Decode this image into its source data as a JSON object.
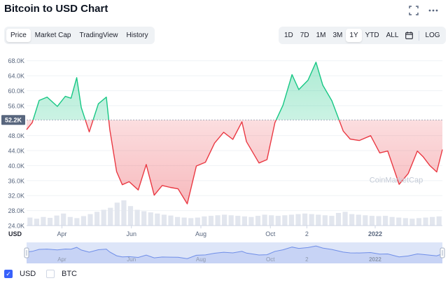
{
  "header": {
    "title": "Bitcoin to USD Chart",
    "tabs": [
      {
        "label": "Price",
        "active": true
      },
      {
        "label": "Market Cap",
        "active": false
      },
      {
        "label": "TradingView",
        "active": false
      },
      {
        "label": "History",
        "active": false
      }
    ],
    "ranges": [
      {
        "label": "1D",
        "active": false
      },
      {
        "label": "7D",
        "active": false
      },
      {
        "label": "1M",
        "active": false
      },
      {
        "label": "3M",
        "active": false
      },
      {
        "label": "1Y",
        "active": true
      },
      {
        "label": "YTD",
        "active": false
      },
      {
        "label": "ALL",
        "active": false
      }
    ],
    "log_label": "LOG",
    "icons": [
      "fullscreen-icon",
      "more-icon",
      "calendar-icon"
    ]
  },
  "chart_data": {
    "type": "line",
    "ylabel": "USD",
    "yticks": [
      "68.0K",
      "64.0K",
      "60.0K",
      "56.0K",
      "52.2K",
      "48.0K",
      "44.0K",
      "40.0K",
      "36.0K",
      "32.0K",
      "28.0K",
      "24.0K"
    ],
    "ylim": [
      24000,
      70000
    ],
    "current_price_label": "52.2K",
    "baseline": 52200,
    "xticks": [
      "Apr",
      "Jun",
      "Aug",
      "Oct",
      "2",
      "2022"
    ],
    "x_range": [
      "2021-03-01",
      "2022-03-01"
    ],
    "series": [
      {
        "x": [
          "2021-03-01",
          "2021-03-06",
          "2021-03-12",
          "2021-03-19",
          "2021-03-28",
          "2021-04-04",
          "2021-04-09",
          "2021-04-14",
          "2021-04-18",
          "2021-04-25",
          "2021-05-03",
          "2021-05-10",
          "2021-05-13",
          "2021-05-19",
          "2021-05-24",
          "2021-05-30",
          "2021-06-07",
          "2021-06-14",
          "2021-06-21",
          "2021-06-28",
          "2021-07-05",
          "2021-07-12",
          "2021-07-20",
          "2021-07-28",
          "2021-08-05",
          "2021-08-13",
          "2021-08-21",
          "2021-08-29",
          "2021-09-06",
          "2021-09-10",
          "2021-09-21",
          "2021-09-28",
          "2021-10-05",
          "2021-10-12",
          "2021-10-20",
          "2021-10-26",
          "2021-11-03",
          "2021-11-10",
          "2021-11-16",
          "2021-11-24",
          "2021-12-04",
          "2021-12-10",
          "2021-12-18",
          "2021-12-28",
          "2022-01-05",
          "2022-01-12",
          "2022-01-22",
          "2022-01-30",
          "2022-02-07",
          "2022-02-12",
          "2022-02-18",
          "2022-02-24",
          "2022-03-01"
        ],
        "values": [
          49600,
          51500,
          57400,
          58300,
          55800,
          58500,
          58000,
          63500,
          55500,
          49000,
          56500,
          58300,
          49700,
          38400,
          34900,
          35700,
          33500,
          40300,
          32100,
          34700,
          34200,
          33800,
          29800,
          39900,
          40900,
          46000,
          48900,
          47000,
          51700,
          46400,
          40700,
          41600,
          51500,
          56100,
          64300,
          60300,
          62800,
          67600,
          61500,
          57300,
          49200,
          47100,
          46700,
          48000,
          43400,
          43900,
          35000,
          37900,
          43900,
          42400,
          40000,
          38300,
          44300
        ]
      }
    ],
    "colors": {
      "up": "#16c784",
      "down": "#ea3943"
    },
    "volume": [
      28,
      24,
      30,
      27,
      35,
      42,
      30,
      26,
      33,
      40,
      48,
      55,
      62,
      80,
      88,
      68,
      55,
      50,
      46,
      42,
      38,
      35,
      30,
      28,
      26,
      28,
      32,
      34,
      36,
      38,
      36,
      34,
      32,
      30,
      34,
      38,
      36,
      34,
      36,
      38,
      40,
      42,
      40,
      38,
      36,
      34,
      44,
      48,
      40,
      38,
      36,
      34,
      33,
      34,
      30,
      28,
      26,
      24,
      26,
      28,
      30,
      32
    ],
    "x_axis_label": "USD",
    "watermark": "CoinMarketCap",
    "navigator_ticks": [
      "Apr",
      "Jun",
      "Aug",
      "Oct",
      "2",
      "2022"
    ]
  },
  "legend": [
    {
      "label": "USD",
      "checked": true
    },
    {
      "label": "BTC",
      "checked": false
    }
  ]
}
